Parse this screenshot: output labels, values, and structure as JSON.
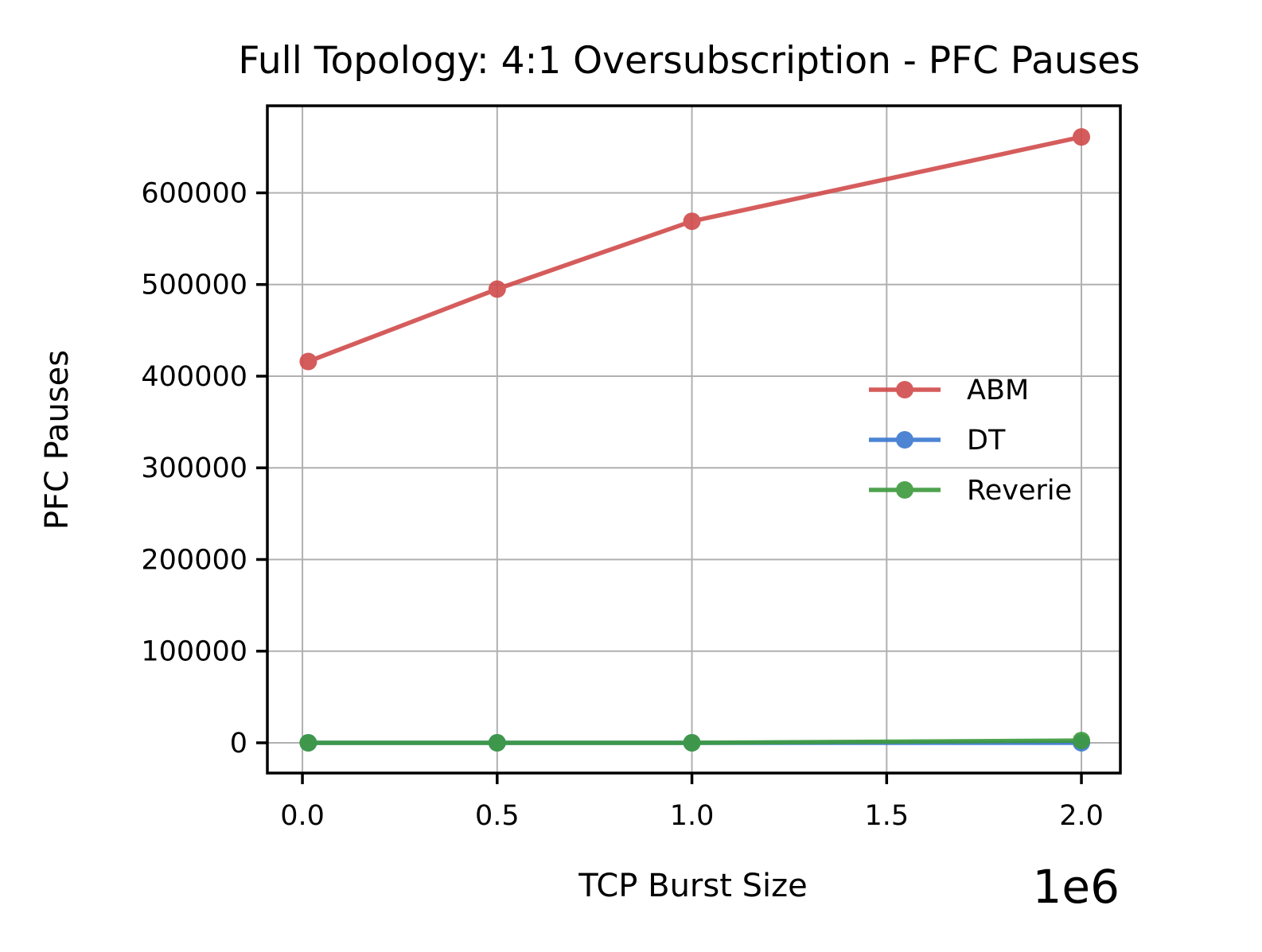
{
  "chart_data": {
    "type": "line",
    "title": "Full Topology: 4:1 Oversubscription - PFC Pauses",
    "xlabel": "TCP Burst Size",
    "ylabel": "PFC Pauses",
    "x_offset_label": "1e6",
    "x": [
      15000,
      500000,
      1000000,
      2000000
    ],
    "xlim": [
      -90000,
      2100000
    ],
    "ylim": [
      -33000,
      695000
    ],
    "x_ticks": [
      0,
      500000,
      1000000,
      1500000,
      2000000
    ],
    "x_tick_labels": [
      "0.0",
      "0.5",
      "1.0",
      "1.5",
      "2.0"
    ],
    "y_ticks": [
      0,
      100000,
      200000,
      300000,
      400000,
      500000,
      600000
    ],
    "y_tick_labels": [
      "0",
      "100000",
      "200000",
      "300000",
      "400000",
      "500000",
      "600000"
    ],
    "grid": true,
    "legend_position": "center-right",
    "series": [
      {
        "name": "ABM",
        "color": "#d14b4b",
        "values": [
          416000,
          495000,
          569000,
          661000
        ]
      },
      {
        "name": "DT",
        "color": "#3a78d0",
        "values": [
          0,
          0,
          0,
          0
        ]
      },
      {
        "name": "Reverie",
        "color": "#3d9a3d",
        "values": [
          0,
          0,
          0,
          2500
        ]
      }
    ]
  }
}
